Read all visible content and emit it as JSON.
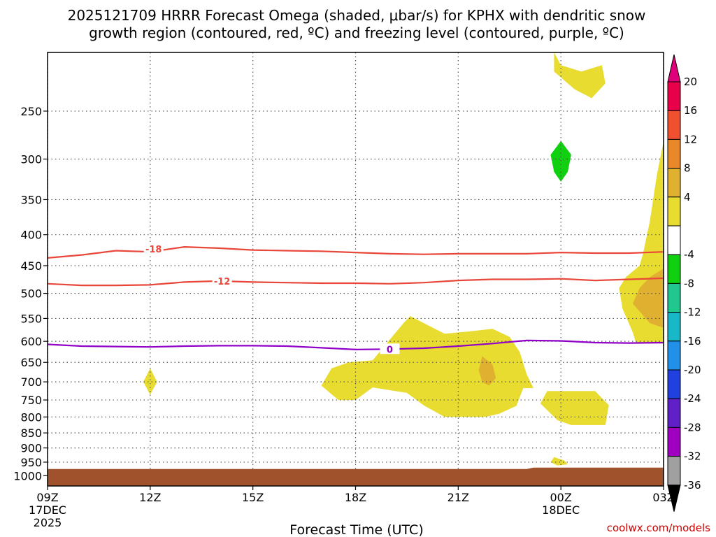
{
  "title": {
    "line1": "2025121709 HRRR Forecast Omega (shaded, μbar/s) for KPHX with dendritic snow",
    "line2": "growth region (contoured, red, ºC) and freezing level (contoured, purple, ºC)"
  },
  "xlabel": "Forecast Time (UTC)",
  "credit": "coolwx.com/models",
  "colors": {
    "dendritic": "#e8473a",
    "freezing": "#9000c8",
    "terrain": "#a0522d",
    "yellow": "#e8dc30",
    "orange": "#e09a30",
    "green": "#18d018",
    "grid": "#555555"
  },
  "chart_data": {
    "type": "time-height cross section",
    "x_range_hours": [
      0,
      18
    ],
    "y_scale": "log pressure (hPa)",
    "y_range": [
      200,
      1040
    ],
    "grid": true,
    "y_ticks": [
      250,
      300,
      350,
      400,
      450,
      500,
      550,
      600,
      650,
      700,
      750,
      800,
      850,
      900,
      950,
      1000
    ],
    "x_ticks": [
      {
        "hour": 0,
        "label": "09Z",
        "sub1": "17DEC",
        "sub2": "2025"
      },
      {
        "hour": 3,
        "label": "12Z",
        "sub1": "",
        "sub2": ""
      },
      {
        "hour": 6,
        "label": "15Z",
        "sub1": "",
        "sub2": ""
      },
      {
        "hour": 9,
        "label": "18Z",
        "sub1": "",
        "sub2": ""
      },
      {
        "hour": 12,
        "label": "21Z",
        "sub1": "",
        "sub2": ""
      },
      {
        "hour": 15,
        "label": "00Z",
        "sub1": "18DEC",
        "sub2": ""
      },
      {
        "hour": 18,
        "label": "03Z",
        "sub1": "",
        "sub2": ""
      }
    ],
    "colorbar": {
      "labels": [
        "20",
        "16",
        "12",
        "8",
        "4",
        "-4",
        "-8",
        "-12",
        "-16",
        "-20",
        "-24",
        "-28",
        "-32",
        "-36"
      ],
      "colors": [
        "#e8004a",
        "#f05030",
        "#e88828",
        "#e0b030",
        "#e8dc30",
        "#ffffff",
        "#10d010",
        "#20c890",
        "#18b8c8",
        "#2090e8",
        "#2040e0",
        "#6020c8",
        "#a000c0",
        "#a0a0a0"
      ],
      "top_arrow_color": "#e0007a",
      "bottom_arrow_color": "#000000"
    },
    "contours": [
      {
        "name": "dendritic-minus18",
        "color": "#e8473a",
        "label": "-18",
        "label_at": [
          3.1,
          422
        ],
        "points": [
          [
            0,
            437
          ],
          [
            1,
            432
          ],
          [
            2,
            425
          ],
          [
            3,
            427
          ],
          [
            4,
            419
          ],
          [
            5,
            421
          ],
          [
            6,
            424
          ],
          [
            7,
            425
          ],
          [
            8,
            426
          ],
          [
            9,
            428
          ],
          [
            10,
            430
          ],
          [
            11,
            431
          ],
          [
            12,
            430
          ],
          [
            13,
            430
          ],
          [
            14,
            430
          ],
          [
            15,
            428
          ],
          [
            16,
            429
          ],
          [
            17,
            429
          ],
          [
            18,
            427
          ]
        ]
      },
      {
        "name": "dendritic-minus12",
        "color": "#e8473a",
        "label": "-12",
        "label_at": [
          5.1,
          477
        ],
        "points": [
          [
            0,
            482
          ],
          [
            1,
            485
          ],
          [
            2,
            485
          ],
          [
            3,
            484
          ],
          [
            4,
            479
          ],
          [
            5,
            477
          ],
          [
            6,
            479
          ],
          [
            7,
            480
          ],
          [
            8,
            481
          ],
          [
            9,
            481
          ],
          [
            10,
            482
          ],
          [
            11,
            480
          ],
          [
            12,
            476
          ],
          [
            13,
            474
          ],
          [
            14,
            474
          ],
          [
            15,
            473
          ],
          [
            16,
            476
          ],
          [
            17,
            474
          ],
          [
            18,
            472
          ]
        ]
      },
      {
        "name": "freezing-level-zero",
        "color": "#9000c8",
        "label": "0",
        "label_at": [
          10.0,
          618
        ],
        "points": [
          [
            0,
            607
          ],
          [
            1,
            611
          ],
          [
            2,
            612
          ],
          [
            3,
            613
          ],
          [
            4,
            611
          ],
          [
            5,
            610
          ],
          [
            6,
            610
          ],
          [
            7,
            611
          ],
          [
            8,
            615
          ],
          [
            9,
            619
          ],
          [
            10,
            618
          ],
          [
            11,
            616
          ],
          [
            12,
            611
          ],
          [
            13,
            605
          ],
          [
            14,
            598
          ],
          [
            15,
            599
          ],
          [
            16,
            603
          ],
          [
            17,
            604
          ],
          [
            18,
            603
          ]
        ]
      }
    ],
    "shaded_regions": [
      {
        "name": "omega-4-upper-right",
        "level": 4,
        "points": [
          [
            14.8,
            200
          ],
          [
            15.0,
            210
          ],
          [
            15.6,
            215
          ],
          [
            16.2,
            210
          ],
          [
            16.3,
            225
          ],
          [
            15.9,
            238
          ],
          [
            15.4,
            230
          ],
          [
            14.8,
            215
          ]
        ]
      },
      {
        "name": "omega-minus8-green",
        "level": -8,
        "points": [
          [
            15.0,
            280
          ],
          [
            15.3,
            295
          ],
          [
            15.2,
            315
          ],
          [
            15.0,
            327
          ],
          [
            14.8,
            315
          ],
          [
            14.7,
            295
          ]
        ]
      },
      {
        "name": "omega-4-right-edge",
        "level": 4,
        "points": [
          [
            18.0,
            280
          ],
          [
            18.0,
            605
          ],
          [
            17.2,
            605
          ],
          [
            17.1,
            580
          ],
          [
            16.8,
            530
          ],
          [
            16.7,
            490
          ],
          [
            16.9,
            470
          ],
          [
            17.3,
            450
          ],
          [
            17.4,
            430
          ],
          [
            17.6,
            380
          ],
          [
            17.8,
            320
          ]
        ]
      },
      {
        "name": "omega-8-right-edge",
        "level": 8,
        "points": [
          [
            18.0,
            455
          ],
          [
            18.0,
            570
          ],
          [
            17.6,
            560
          ],
          [
            17.1,
            520
          ],
          [
            17.3,
            490
          ],
          [
            17.6,
            470
          ]
        ]
      },
      {
        "name": "omega-4-midlevel",
        "level": 4,
        "points": [
          [
            9.5,
            645
          ],
          [
            9.8,
            615
          ],
          [
            10.4,
            560
          ],
          [
            10.6,
            545
          ],
          [
            11.0,
            560
          ],
          [
            11.6,
            583
          ],
          [
            12.3,
            578
          ],
          [
            13.0,
            572
          ],
          [
            13.5,
            590
          ],
          [
            13.8,
            625
          ],
          [
            14.0,
            680
          ],
          [
            14.2,
            717
          ],
          [
            13.9,
            717
          ],
          [
            13.7,
            767
          ],
          [
            13.2,
            790
          ],
          [
            12.8,
            800
          ],
          [
            11.6,
            800
          ],
          [
            11.0,
            766
          ],
          [
            10.5,
            730
          ],
          [
            9.5,
            715
          ],
          [
            9.0,
            750
          ],
          [
            8.5,
            750
          ],
          [
            8.0,
            710
          ],
          [
            8.3,
            665
          ],
          [
            8.8,
            650
          ]
        ]
      },
      {
        "name": "omega-8-midlevel",
        "level": 8,
        "points": [
          [
            12.7,
            635
          ],
          [
            13.0,
            655
          ],
          [
            13.1,
            690
          ],
          [
            12.9,
            710
          ],
          [
            12.7,
            700
          ],
          [
            12.6,
            670
          ]
        ]
      },
      {
        "name": "omega-4-lowlevel-right",
        "level": 4,
        "points": [
          [
            14.6,
            725
          ],
          [
            15.3,
            725
          ],
          [
            16.0,
            725
          ],
          [
            16.4,
            765
          ],
          [
            16.3,
            825
          ],
          [
            15.8,
            825
          ],
          [
            15.3,
            825
          ],
          [
            14.9,
            810
          ],
          [
            14.4,
            760
          ]
        ]
      },
      {
        "name": "omega-4-small-1000",
        "level": 4,
        "points": [
          [
            14.8,
            932
          ],
          [
            15.1,
            944
          ],
          [
            15.2,
            958
          ],
          [
            14.9,
            962
          ],
          [
            14.7,
            950
          ]
        ]
      },
      {
        "name": "omega-4-small-12z",
        "level": 4,
        "points": [
          [
            3.0,
            665
          ],
          [
            3.2,
            700
          ],
          [
            3.0,
            735
          ],
          [
            2.8,
            700
          ]
        ]
      }
    ],
    "terrain": {
      "name": "surface",
      "pressure_top": 975,
      "pressure_top_right": 970
    }
  }
}
